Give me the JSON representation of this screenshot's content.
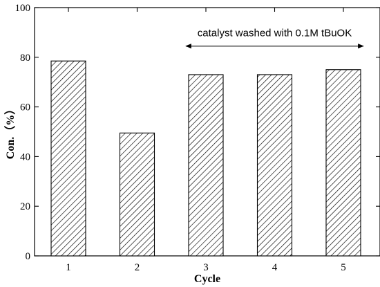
{
  "chart_data": {
    "type": "bar",
    "categories": [
      "1",
      "2",
      "3",
      "4",
      "5"
    ],
    "values": [
      78.5,
      49.5,
      73,
      73,
      75
    ],
    "xlabel": "Cycle",
    "ylabel": "Con.（%）",
    "ylim": [
      0,
      100
    ],
    "yticks": [
      0,
      20,
      40,
      60,
      80,
      100
    ],
    "grid": false,
    "bar_fill": "hatched",
    "annotation": {
      "text": "catalyst washed with 0.1M tBuOK",
      "from_category": "3",
      "to_category": "5",
      "arrow": "double-headed"
    }
  }
}
